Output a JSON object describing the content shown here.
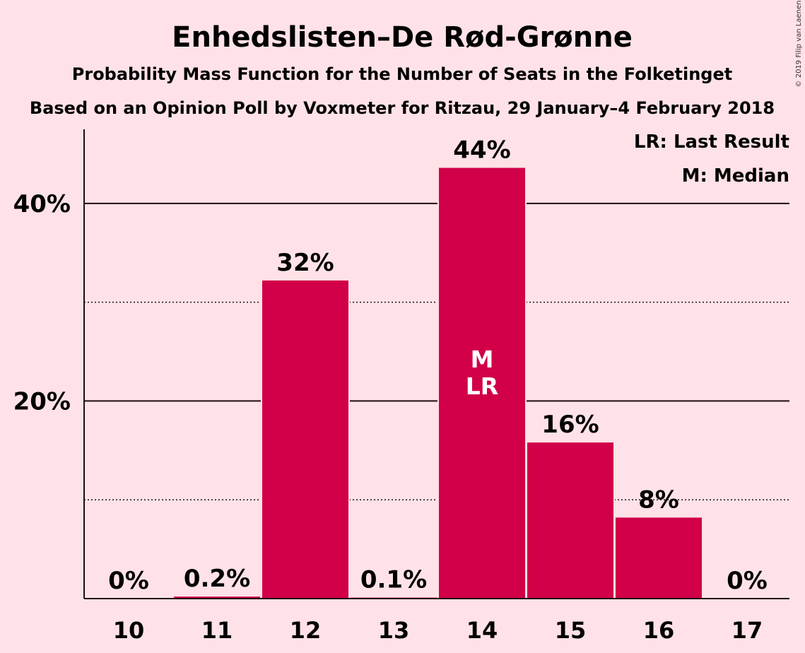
{
  "chart_data": {
    "type": "bar",
    "title": "Enhedslisten–De Rød-Grønne",
    "subtitle": "Probability Mass Function for the Number of Seats in the Folketinget",
    "subtitle2": "Based on an Opinion Poll by Voxmeter for Ritzau, 29 January–4 February 2018",
    "copyright": "© 2019 Filip van Laenen",
    "categories": [
      "10",
      "11",
      "12",
      "13",
      "14",
      "15",
      "16",
      "17"
    ],
    "values": [
      0,
      0.2,
      32.2,
      0.1,
      43.6,
      15.8,
      8.2,
      0
    ],
    "data_labels": [
      "0%",
      "0.2%",
      "32%",
      "0.1%",
      "44%",
      "16%",
      "8%",
      "0%"
    ],
    "bar_color": "#D10049",
    "background_color": "#FFE2E7",
    "ylim": [
      0,
      47.5
    ],
    "yticks": [
      {
        "value": 20,
        "label": "20%"
      },
      {
        "value": 40,
        "label": "40%"
      }
    ],
    "minor_gridlines": [
      10,
      30
    ],
    "legend": [
      "LR: Last Result",
      "M: Median"
    ],
    "legend_position": "top-right",
    "bar_annotations": [
      {
        "category": "14",
        "lines": [
          "M",
          "LR"
        ]
      }
    ]
  }
}
